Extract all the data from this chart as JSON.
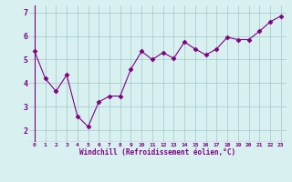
{
  "x": [
    0,
    1,
    2,
    3,
    4,
    5,
    6,
    7,
    8,
    9,
    10,
    11,
    12,
    13,
    14,
    15,
    16,
    17,
    18,
    19,
    20,
    21,
    22,
    23
  ],
  "y": [
    5.35,
    4.2,
    3.65,
    4.35,
    2.6,
    2.15,
    3.2,
    3.45,
    3.45,
    4.6,
    5.35,
    5.0,
    5.3,
    5.05,
    5.75,
    5.45,
    5.2,
    5.45,
    5.95,
    5.85,
    5.85,
    6.2,
    6.6,
    6.85
  ],
  "line_color": "#800080",
  "marker": "D",
  "marker_size": 2.5,
  "bg_color": "#d8f0f0",
  "grid_color": "#a0c8c8",
  "xlabel": "Windchill (Refroidissement éolien,°C)",
  "xlabel_color": "#800080",
  "tick_color": "#800080",
  "ylim": [
    1.5,
    7.3
  ],
  "xlim": [
    -0.5,
    23.5
  ],
  "yticks": [
    2,
    3,
    4,
    5,
    6,
    7
  ],
  "xticks": [
    0,
    1,
    2,
    3,
    4,
    5,
    6,
    7,
    8,
    9,
    10,
    11,
    12,
    13,
    14,
    15,
    16,
    17,
    18,
    19,
    20,
    21,
    22,
    23
  ]
}
